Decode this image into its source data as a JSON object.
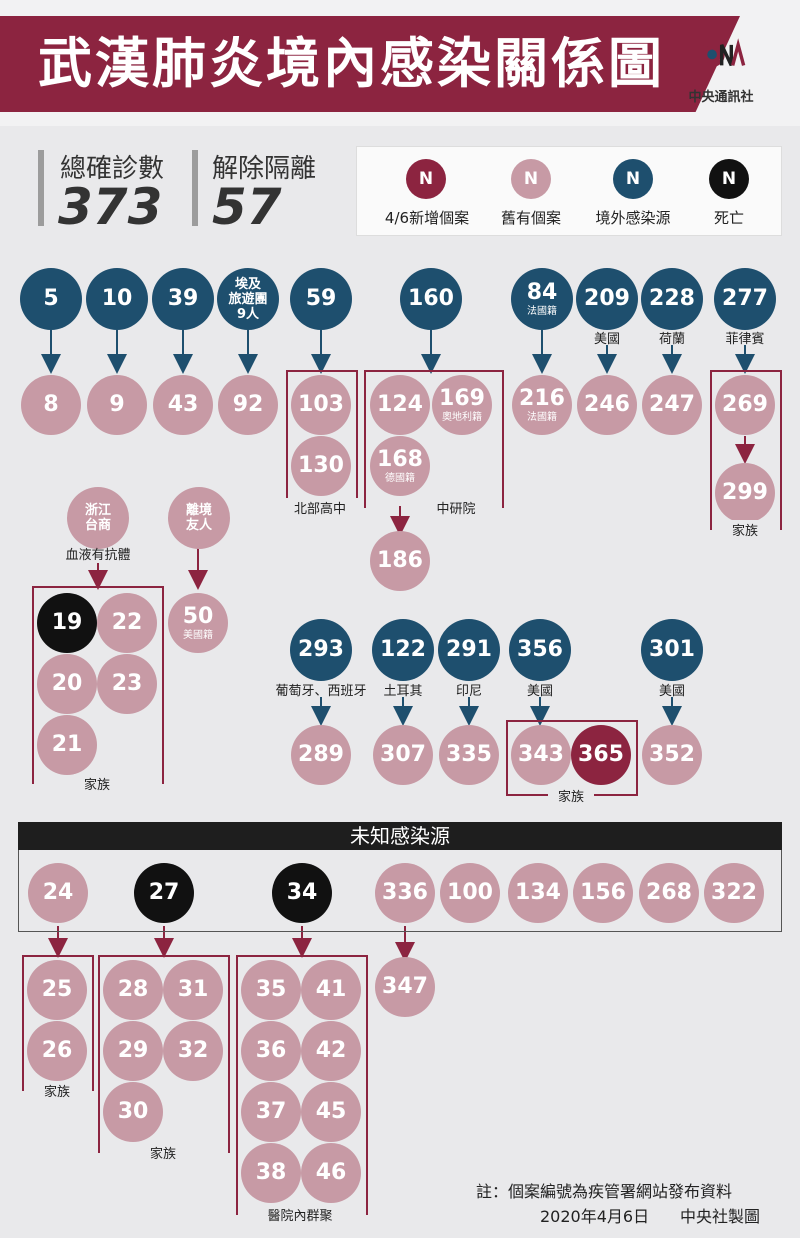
{
  "header": {
    "title": "武漢肺炎境內感染關係圖",
    "logo_text": "中央通訊社"
  },
  "stats": {
    "confirmed": {
      "label": "總確診數",
      "value": "373"
    },
    "released": {
      "label": "解除隔離",
      "value": "57"
    }
  },
  "legend": [
    {
      "symbol": "N",
      "label": "4/6新增個案",
      "color": "#8c2440"
    },
    {
      "symbol": "N",
      "label": "舊有個案",
      "color": "#c79aa5"
    },
    {
      "symbol": "N",
      "label": "境外感染源",
      "color": "#1e4f6e"
    },
    {
      "symbol": "N",
      "label": "死亡",
      "color": "#111111"
    }
  ],
  "sources": {
    "s5": "5",
    "s10": "10",
    "s39": "39",
    "s_egypt": {
      "line1": "埃及",
      "line2": "旅遊團",
      "line3": "9人"
    },
    "s59": "59",
    "s160": "160",
    "s84": {
      "num": "84",
      "sub": "法國籍"
    },
    "s209": {
      "num": "209",
      "cap": "美國"
    },
    "s228": {
      "num": "228",
      "cap": "荷蘭"
    },
    "s277": {
      "num": "277",
      "cap": "菲律賓"
    },
    "zhejiang": {
      "line1": "浙江",
      "line2": "台商",
      "cap": "血液有抗體"
    },
    "friend": {
      "line1": "離境",
      "line2": "友人"
    },
    "s293": {
      "num": "293",
      "cap": "葡萄牙、西班牙"
    },
    "s122": {
      "num": "122",
      "cap": "土耳其"
    },
    "s291": {
      "num": "291",
      "cap": "印尼"
    },
    "s356": {
      "num": "356",
      "cap": "美國"
    },
    "s301": {
      "num": "301",
      "cap": "美國"
    }
  },
  "cases": {
    "c8": "8",
    "c9": "9",
    "c43": "43",
    "c92": "92",
    "c103": "103",
    "c130": "130",
    "c124": "124",
    "c169": {
      "num": "169",
      "sub": "奧地利籍"
    },
    "c168": {
      "num": "168",
      "sub": "德國籍"
    },
    "c186": "186",
    "c216": {
      "num": "216",
      "sub": "法國籍"
    },
    "c246": "246",
    "c247": "247",
    "c269": "269",
    "c299": "299",
    "c19": "19",
    "c22": "22",
    "c20": "20",
    "c23": "23",
    "c21": "21",
    "c50": {
      "num": "50",
      "sub": "美國籍"
    },
    "c289": "289",
    "c307": "307",
    "c335": "335",
    "c343": "343",
    "c365": "365",
    "c352": "352"
  },
  "group_labels": {
    "north_high": "北部高中",
    "academia": "中研院",
    "family": "家族",
    "hospital": "醫院內群聚"
  },
  "unknown": {
    "title": "未知感染源",
    "row": [
      "24",
      "27",
      "34",
      "336",
      "100",
      "134",
      "156",
      "268",
      "322"
    ],
    "c25": "25",
    "c26": "26",
    "c28": "28",
    "c31": "31",
    "c29": "29",
    "c32": "32",
    "c30": "30",
    "c35": "35",
    "c41": "41",
    "c36": "36",
    "c42": "42",
    "c37": "37",
    "c45": "45",
    "c38": "38",
    "c46": "46",
    "c347": "347"
  },
  "footer": {
    "note": "註：個案編號為疾管署網站發布資料",
    "date": "2020年4月6日",
    "credit": "中央社製圖"
  }
}
